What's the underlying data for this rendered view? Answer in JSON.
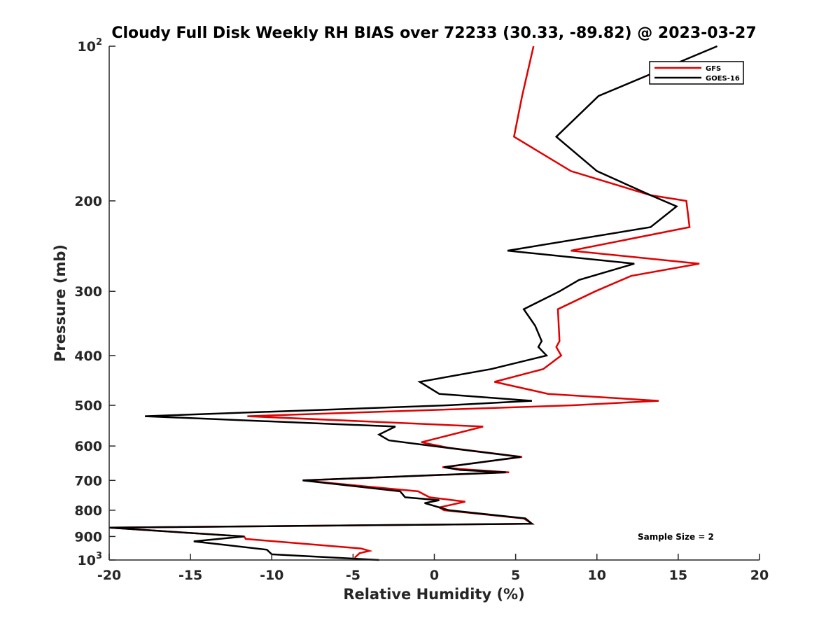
{
  "chart_data": {
    "type": "line",
    "title": "Cloudy Full Disk Weekly RH BIAS over 72233 (30.33, -89.82) @ 2023-03-27",
    "xlabel": "Relative Humidity (%)",
    "ylabel": "Pressure (mb)",
    "xlim": [
      -20,
      20
    ],
    "ylim": [
      100,
      1000
    ],
    "yscale": "log",
    "yreverse": true,
    "xticks": [
      -20,
      -15,
      -10,
      -5,
      0,
      5,
      10,
      15,
      20
    ],
    "xtick_labels": [
      "-20",
      "-15",
      "-10",
      "-5",
      "0",
      "5",
      "10",
      "15",
      "20"
    ],
    "yticks": [
      100,
      200,
      300,
      400,
      500,
      600,
      700,
      800,
      900,
      1000
    ],
    "ytick_labels": [
      {
        "base": "10",
        "exp": "2"
      },
      {
        "base": "200",
        "exp": ""
      },
      {
        "base": "300",
        "exp": ""
      },
      {
        "base": "400",
        "exp": ""
      },
      {
        "base": "500",
        "exp": ""
      },
      {
        "base": "600",
        "exp": ""
      },
      {
        "base": "700",
        "exp": ""
      },
      {
        "base": "800",
        "exp": ""
      },
      {
        "base": "900",
        "exp": ""
      },
      {
        "base": "10",
        "exp": "3"
      }
    ],
    "grid": false,
    "legend_position": "top-right",
    "annotation": "Sample Size = 2",
    "series": [
      {
        "name": "GFS",
        "color": "#e00000",
        "points": [
          [
            6.1,
            100
          ],
          [
            5.4,
            125
          ],
          [
            4.9,
            150
          ],
          [
            8.4,
            175
          ],
          [
            13.3,
            195
          ],
          [
            15.5,
            200
          ],
          [
            15.7,
            225
          ],
          [
            8.4,
            250
          ],
          [
            16.3,
            265
          ],
          [
            12.1,
            280
          ],
          [
            9.9,
            300
          ],
          [
            7.6,
            325
          ],
          [
            7.7,
            375
          ],
          [
            7.5,
            385
          ],
          [
            7.8,
            400
          ],
          [
            6.7,
            425
          ],
          [
            3.7,
            450
          ],
          [
            7.0,
            475
          ],
          [
            13.8,
            490
          ],
          [
            8.5,
            500
          ],
          [
            -11.5,
            525
          ],
          [
            3.0,
            550
          ],
          [
            0.6,
            575
          ],
          [
            -0.8,
            590
          ],
          [
            0.9,
            605
          ],
          [
            5.4,
            630
          ],
          [
            0.5,
            660
          ],
          [
            1.6,
            665
          ],
          [
            4.6,
            675
          ],
          [
            -8.1,
            700
          ],
          [
            -1.0,
            735
          ],
          [
            -0.3,
            755
          ],
          [
            1.9,
            770
          ],
          [
            0.3,
            790
          ],
          [
            0.6,
            800
          ],
          [
            5.5,
            830
          ],
          [
            6.0,
            850
          ],
          [
            -20.0,
            865
          ],
          [
            -11.7,
            900
          ],
          [
            -11.6,
            910
          ],
          [
            -4.5,
            950
          ],
          [
            -4.0,
            960
          ],
          [
            -4.6,
            970
          ],
          [
            -4.9,
            990
          ]
        ]
      },
      {
        "name": "GOES-16",
        "color": "#000000",
        "points": [
          [
            17.4,
            100
          ],
          [
            10.1,
            125
          ],
          [
            7.5,
            150
          ],
          [
            10.0,
            175
          ],
          [
            13.3,
            195
          ],
          [
            14.9,
            205
          ],
          [
            13.3,
            225
          ],
          [
            4.5,
            250
          ],
          [
            12.3,
            265
          ],
          [
            8.9,
            285
          ],
          [
            7.7,
            300
          ],
          [
            5.5,
            325
          ],
          [
            6.2,
            350
          ],
          [
            6.6,
            375
          ],
          [
            6.4,
            385
          ],
          [
            6.9,
            400
          ],
          [
            3.5,
            425
          ],
          [
            -0.9,
            450
          ],
          [
            0.3,
            475
          ],
          [
            6.0,
            490
          ],
          [
            0.8,
            500
          ],
          [
            -17.8,
            525
          ],
          [
            -2.4,
            550
          ],
          [
            -3.4,
            570
          ],
          [
            -2.8,
            585
          ],
          [
            0.8,
            605
          ],
          [
            5.3,
            630
          ],
          [
            0.6,
            660
          ],
          [
            1.6,
            668
          ],
          [
            4.4,
            675
          ],
          [
            -8.1,
            700
          ],
          [
            -2.1,
            735
          ],
          [
            -1.8,
            755
          ],
          [
            0.3,
            765
          ],
          [
            -0.6,
            775
          ],
          [
            0.9,
            800
          ],
          [
            5.6,
            830
          ],
          [
            6.0,
            850
          ],
          [
            -20.0,
            865
          ],
          [
            -11.7,
            900
          ],
          [
            -14.8,
            920
          ],
          [
            -12.8,
            935
          ],
          [
            -10.3,
            955
          ],
          [
            -10.0,
            975
          ],
          [
            -3.4,
            1000
          ]
        ]
      }
    ]
  }
}
